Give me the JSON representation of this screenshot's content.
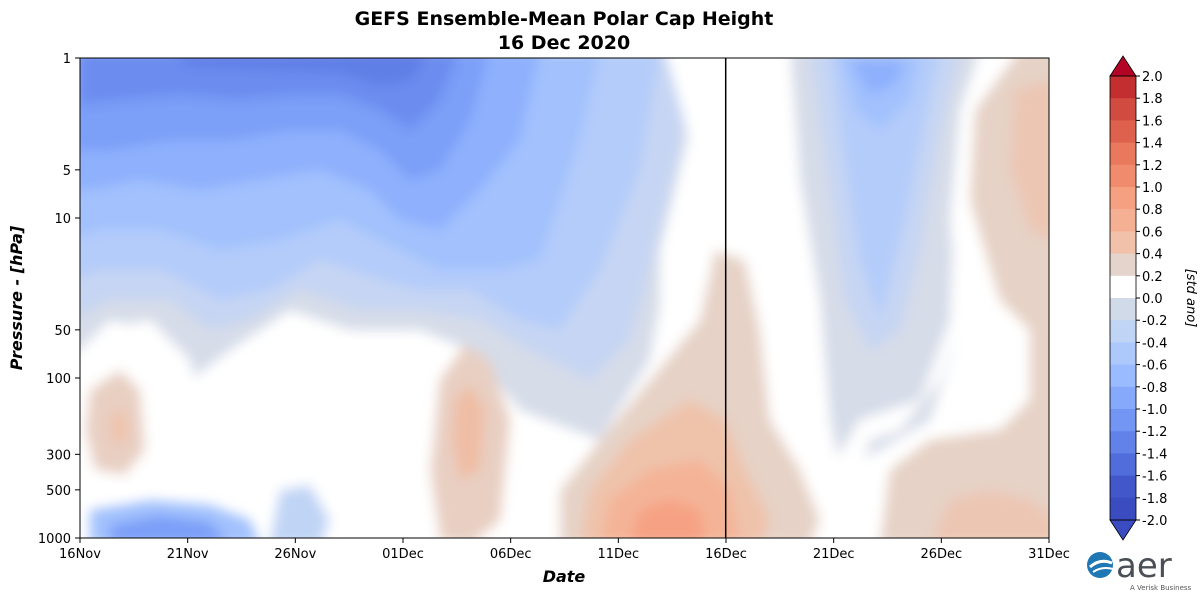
{
  "chart_data": {
    "type": "heatmap",
    "title": "GEFS Ensemble-Mean Polar Cap Height",
    "subtitle": "16 Dec 2020",
    "xlabel": "Date",
    "ylabel": "Pressure - [hPa]",
    "x_ticks": [
      "16Nov",
      "21Nov",
      "26Nov",
      "01Dec",
      "06Dec",
      "11Dec",
      "16Dec",
      "21Dec",
      "26Dec",
      "31Dec"
    ],
    "y_ticks": [
      "1",
      "5",
      "10",
      "50",
      "100",
      "300",
      "500",
      "1000"
    ],
    "y_tick_values": [
      1,
      5,
      10,
      50,
      100,
      300,
      500,
      1000
    ],
    "x_range_days": [
      0,
      45
    ],
    "y_range_hpa": [
      1,
      1000
    ],
    "y_scale": "log",
    "forecast_start_line": "16Dec",
    "colorbar": {
      "label": "[std ano]",
      "levels": [
        "2.0",
        "1.8",
        "1.6",
        "1.4",
        "1.2",
        "1.0",
        "0.8",
        "0.6",
        "0.4",
        "0.2",
        "0.0",
        "-0.2",
        "-0.4",
        "-0.6",
        "-0.8",
        "-1.0",
        "-1.2",
        "-1.4",
        "-1.6",
        "-1.8",
        "-2.0"
      ],
      "colors": [
        "#b40426",
        "#c32e31",
        "#d24b40",
        "#de614d",
        "#e9785d",
        "#f08b6e",
        "#f5a081",
        "#f5b093",
        "#f2c1a9",
        "#e4d4cb",
        "#ffffff",
        "#d1dae9",
        "#c0d4f5",
        "#adc9fc",
        "#9abbff",
        "#86a9fc",
        "#7396f5",
        "#6282ea",
        "#516ddb",
        "#4257c9",
        "#3b4cc0"
      ]
    }
  },
  "logo": {
    "text": "aer",
    "tagline": "A Verisk Business"
  }
}
